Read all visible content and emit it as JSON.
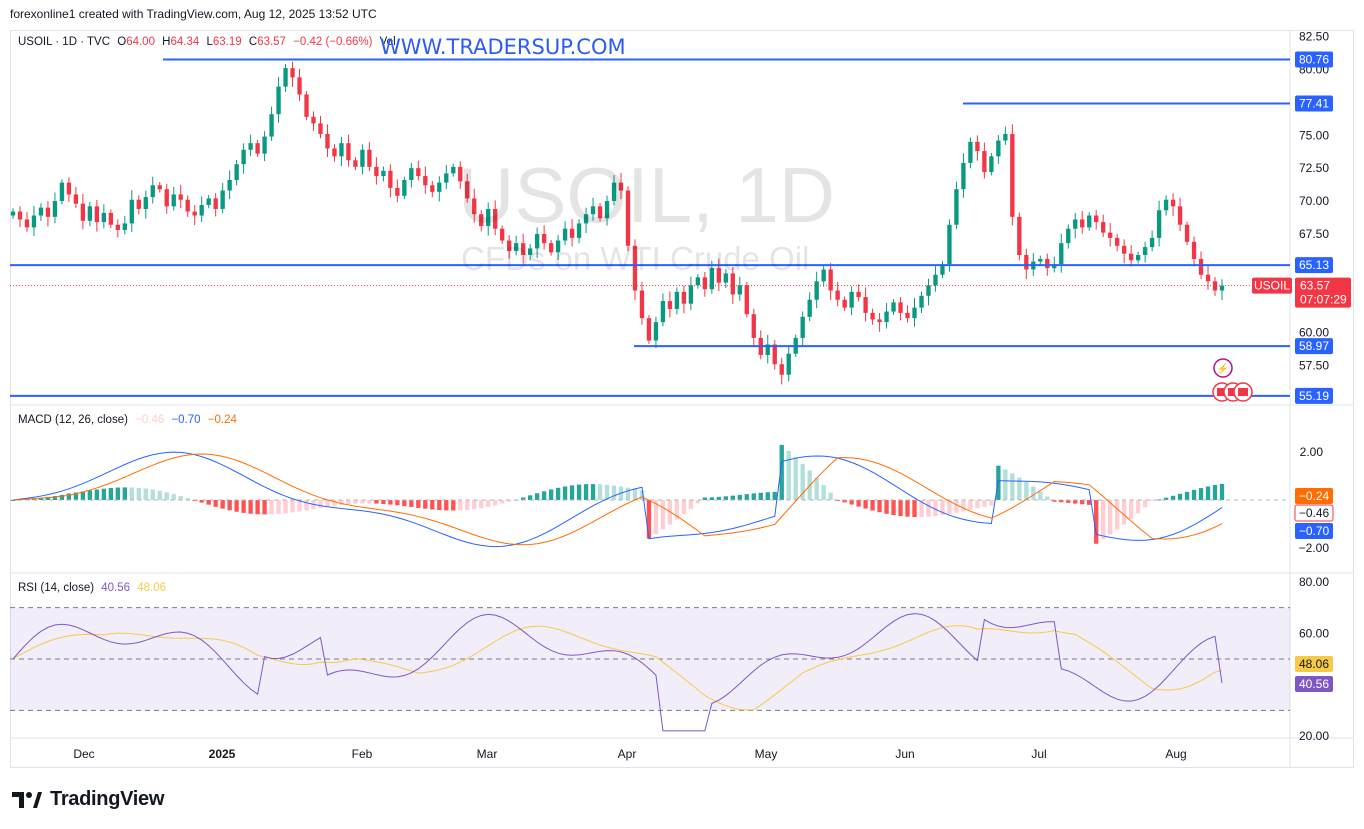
{
  "header": {
    "attribution": "forexonline1 created with TradingView.com, Aug 12, 2025 13:52 UTC"
  },
  "legend": {
    "symbol": "USOIL · 1D · TVC",
    "o_label": "O",
    "o": "64.00",
    "h_label": "H",
    "h": "64.34",
    "l_label": "L",
    "l": "63.19",
    "c_label": "C",
    "c": "63.57",
    "change": "−0.42 (−0.66%)",
    "vol": "Vol"
  },
  "overlay": {
    "website": "WWW.TRADERSUP.COM",
    "watermark_symbol": "USOIL, 1D",
    "watermark_desc": "CFDs on WTI Crude Oil"
  },
  "price_axis": {
    "ticks": [
      "82.50",
      "80.00",
      "77.50",
      "75.00",
      "72.50",
      "70.00",
      "67.50",
      "65.00",
      "60.00",
      "57.50"
    ],
    "levels": [
      "80.76",
      "77.41",
      "65.13",
      "58.97",
      "55.19"
    ],
    "symbol_tag": "USOIL",
    "last_price": "63.57",
    "countdown": "07:07:29"
  },
  "macd": {
    "title": "MACD (12, 26, close)",
    "hist_value": "−0.46",
    "macd_value": "−0.70",
    "signal_value": "−0.24",
    "ticks": [
      "2.00",
      "−2.00"
    ],
    "tag_signal": "−0.24",
    "tag_hist": "−0.46",
    "tag_macd": "−0.70"
  },
  "rsi": {
    "title": "RSI (14, close)",
    "rsi_value": "40.56",
    "ma_value": "48.06",
    "ticks": [
      "80.00",
      "60.00",
      "20.00"
    ],
    "tag_ma": "48.06",
    "tag_rsi": "40.56"
  },
  "time_axis": {
    "labels": [
      "Dec",
      "2025",
      "Feb",
      "Mar",
      "Apr",
      "May",
      "Jun",
      "Jul",
      "Aug"
    ]
  },
  "brand": {
    "logo_text": "TradingView"
  },
  "colors": {
    "up": "#089981",
    "down": "#f23645",
    "level": "#2962ff",
    "macd_line": "#2962ff",
    "signal_line": "#ff6d00",
    "hist_up_strong": "#26a69a",
    "hist_up_weak": "#b2dfdb",
    "hist_down_strong": "#ff5252",
    "hist_down_weak": "#ffcdd2",
    "rsi_line": "#7e57c2",
    "rsi_ma": "#f7c948",
    "rsi_band": "#7e57c2"
  },
  "chart_data": [
    {
      "type": "candlestick",
      "title": "USOIL · 1D · TVC",
      "x_labels": [
        "Dec",
        "2025",
        "Feb",
        "Mar",
        "Apr",
        "May",
        "Jun",
        "Jul",
        "Aug"
      ],
      "ylim": [
        54.5,
        83.0
      ],
      "horizontal_levels": [
        80.76,
        77.41,
        65.13,
        58.97,
        55.19
      ],
      "last": {
        "open": 64.0,
        "high": 64.34,
        "low": 63.19,
        "close": 63.57
      },
      "closes_approx": [
        69.2,
        68.6,
        68.0,
        68.9,
        69.5,
        68.8,
        70.0,
        71.4,
        70.5,
        69.8,
        68.5,
        69.6,
        68.4,
        69.1,
        68.2,
        67.8,
        68.3,
        70.1,
        69.4,
        70.3,
        71.2,
        70.9,
        69.6,
        70.5,
        70.1,
        69.2,
        68.9,
        69.7,
        70.2,
        69.4,
        70.8,
        71.6,
        72.8,
        73.9,
        74.4,
        73.6,
        74.9,
        76.6,
        78.7,
        80.1,
        79.4,
        78.1,
        76.4,
        75.9,
        75.1,
        74.0,
        73.4,
        74.4,
        73.1,
        72.6,
        73.9,
        72.6,
        71.9,
        72.3,
        71.0,
        70.4,
        71.6,
        72.5,
        71.9,
        71.2,
        70.7,
        71.4,
        72.1,
        72.6,
        71.5,
        70.2,
        69.0,
        68.1,
        69.4,
        67.9,
        67.0,
        66.2,
        66.8,
        65.9,
        66.4,
        67.5,
        66.8,
        66.1,
        67.0,
        67.9,
        67.2,
        68.3,
        69.0,
        69.6,
        68.7,
        70.0,
        71.4,
        70.8,
        66.6,
        63.2,
        61.1,
        59.4,
        60.8,
        62.4,
        61.8,
        63.1,
        62.2,
        63.6,
        64.2,
        63.3,
        64.9,
        63.8,
        64.5,
        62.9,
        63.6,
        61.4,
        59.6,
        58.3,
        59.1,
        57.6,
        56.8,
        58.4,
        59.6,
        61.2,
        62.5,
        63.9,
        64.8,
        63.2,
        62.5,
        61.9,
        63.1,
        62.7,
        61.5,
        61.0,
        60.8,
        61.6,
        62.3,
        61.5,
        61.1,
        61.9,
        62.8,
        63.6,
        64.4,
        65.2,
        68.2,
        70.9,
        72.9,
        74.5,
        73.8,
        72.2,
        73.4,
        74.6,
        75.1,
        68.8,
        65.9,
        64.8,
        65.4,
        65.6,
        64.9,
        65.2,
        66.8,
        67.9,
        68.6,
        68.0,
        68.9,
        68.4,
        67.6,
        67.2,
        66.6,
        66.0,
        65.5,
        65.9,
        66.5,
        67.2,
        69.3,
        70.1,
        69.6,
        68.2,
        66.9,
        65.6,
        64.4,
        63.9,
        63.2,
        63.57
      ]
    },
    {
      "type": "line",
      "title": "MACD (12, 26, close)",
      "series": [
        {
          "name": "MACD",
          "last": -0.7
        },
        {
          "name": "Signal",
          "last": -0.24
        },
        {
          "name": "Histogram",
          "last": -0.46
        }
      ],
      "yticks": [
        2.0,
        -2.0
      ]
    },
    {
      "type": "line",
      "title": "RSI (14, close)",
      "series": [
        {
          "name": "RSI",
          "last": 40.56
        },
        {
          "name": "RSI MA",
          "last": 48.06
        }
      ],
      "yticks": [
        80,
        60,
        20
      ],
      "bands": [
        70,
        50,
        30
      ]
    }
  ]
}
